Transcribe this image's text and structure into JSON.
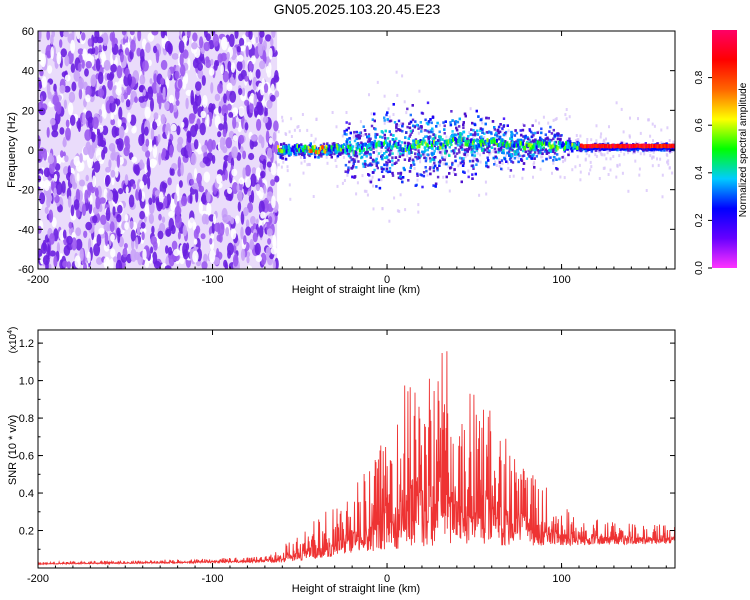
{
  "title": "GN05.2025.103.20.45.E23",
  "chart_data": [
    {
      "type": "heatmap",
      "name": "spectrogram",
      "xlabel": "Height of straight line (km)",
      "ylabel": "Frequency (Hz)",
      "xlim": [
        -200,
        165
      ],
      "ylim": [
        -60,
        60
      ],
      "x_ticks": [
        "-200",
        "-100",
        "0",
        "100"
      ],
      "y_ticks": [
        "-60",
        "-40",
        "-20",
        "0",
        "20",
        "40",
        "60"
      ],
      "noise_region_x": [
        -200,
        -63
      ],
      "signal_band": [
        {
          "x": -62,
          "f": 0
        },
        {
          "x": -50,
          "f": 1
        },
        {
          "x": -40,
          "f": 0
        },
        {
          "x": -30,
          "f": 1
        },
        {
          "x": -20,
          "f": 0
        },
        {
          "x": -10,
          "f": 2
        },
        {
          "x": 0,
          "f": 3
        },
        {
          "x": 10,
          "f": 1
        },
        {
          "x": 20,
          "f": 4
        },
        {
          "x": 30,
          "f": 2
        },
        {
          "x": 40,
          "f": 5
        },
        {
          "x": 50,
          "f": 3
        },
        {
          "x": 60,
          "f": 4
        },
        {
          "x": 70,
          "f": 3
        },
        {
          "x": 80,
          "f": 2
        },
        {
          "x": 90,
          "f": 3
        },
        {
          "x": 100,
          "f": 2
        },
        {
          "x": 110,
          "f": 2
        },
        {
          "x": 130,
          "f": 2
        },
        {
          "x": 165,
          "f": 2
        }
      ],
      "colorbar": {
        "label": "Normalized spectral amplitude",
        "range": [
          0,
          1
        ],
        "ticks": [
          "0.0",
          "0.2",
          "0.4",
          "0.6",
          "0.8"
        ],
        "colors": [
          "#ff33ff",
          "#6600ff",
          "#0000ff",
          "#00ccff",
          "#00ff00",
          "#ffff00",
          "#ff6600",
          "#ff0000",
          "#ff0066"
        ]
      }
    },
    {
      "type": "line",
      "name": "snr",
      "xlabel": "Height of straight line (km)",
      "ylabel": "SNR (10 * v/v)",
      "y_multiplier": "(x10",
      "y_multiplier_exp": "4",
      "xlim": [
        -200,
        165
      ],
      "ylim": [
        0,
        1.27
      ],
      "x_ticks": [
        "-200",
        "-100",
        "0",
        "100"
      ],
      "y_ticks": [
        "0.2",
        "0.4",
        "0.6",
        "0.8",
        "1.0",
        "1.2"
      ],
      "color": "#ee3333",
      "envelope": [
        {
          "x": -200,
          "y": 0.03
        },
        {
          "x": -150,
          "y": 0.04
        },
        {
          "x": -100,
          "y": 0.05
        },
        {
          "x": -70,
          "y": 0.07
        },
        {
          "x": -50,
          "y": 0.18
        },
        {
          "x": -40,
          "y": 0.28
        },
        {
          "x": -30,
          "y": 0.32
        },
        {
          "x": -20,
          "y": 0.42
        },
        {
          "x": -10,
          "y": 0.55
        },
        {
          "x": 0,
          "y": 0.8
        },
        {
          "x": 10,
          "y": 1.0
        },
        {
          "x": 20,
          "y": 1.05
        },
        {
          "x": 30,
          "y": 1.2
        },
        {
          "x": 40,
          "y": 1.1
        },
        {
          "x": 50,
          "y": 0.95
        },
        {
          "x": 60,
          "y": 0.85
        },
        {
          "x": 70,
          "y": 0.75
        },
        {
          "x": 80,
          "y": 0.55
        },
        {
          "x": 90,
          "y": 0.45
        },
        {
          "x": 100,
          "y": 0.33
        },
        {
          "x": 110,
          "y": 0.28
        },
        {
          "x": 120,
          "y": 0.26
        },
        {
          "x": 140,
          "y": 0.24
        },
        {
          "x": 165,
          "y": 0.23
        }
      ],
      "baseline": [
        {
          "x": -200,
          "y": 0.02
        },
        {
          "x": -60,
          "y": 0.03
        },
        {
          "x": -30,
          "y": 0.06
        },
        {
          "x": 0,
          "y": 0.1
        },
        {
          "x": 40,
          "y": 0.12
        },
        {
          "x": 100,
          "y": 0.12
        },
        {
          "x": 165,
          "y": 0.13
        }
      ]
    }
  ]
}
